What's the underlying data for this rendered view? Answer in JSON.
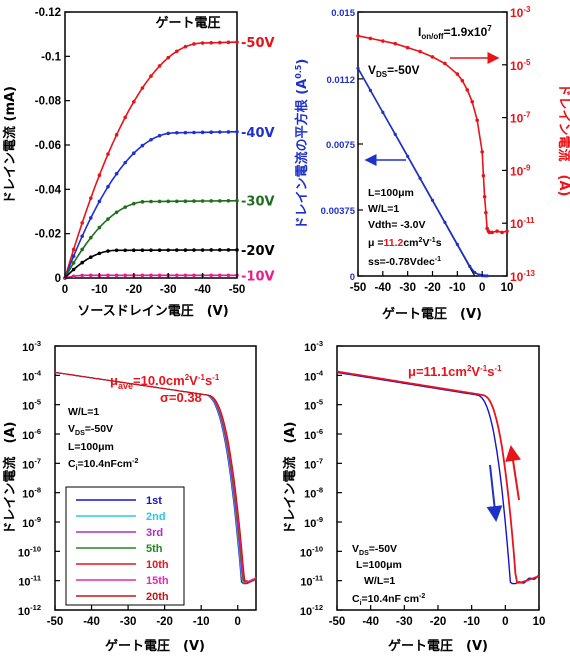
{
  "chart_data": [
    {
      "id": "output",
      "type": "line",
      "xlabel": "ソースドレイン電圧　(V)",
      "ylabel": "ドレイン電流 (mA)",
      "xlim": [
        0,
        -50
      ],
      "ylim": [
        0,
        -0.12
      ],
      "xticks": [
        0,
        -10,
        -20,
        -30,
        -40,
        -50
      ],
      "xticklabels": [
        "0",
        "-10",
        "-20",
        "-30",
        "-40",
        "-50"
      ],
      "yticks": [
        0,
        -0.02,
        -0.04,
        -0.06,
        -0.08,
        -0.1,
        -0.12
      ],
      "yticklabels": [
        "0",
        "-0.02",
        "-0.04",
        "-0.06",
        "-0.08",
        "-0.1",
        "-0.12"
      ],
      "legend_title": "ゲート電圧",
      "series": [
        {
          "name": "-50V",
          "color": "#e8141a",
          "sat": -0.106,
          "vsat": -40
        },
        {
          "name": "-40V",
          "color": "#2030d0",
          "sat": -0.0655,
          "vsat": -32
        },
        {
          "name": "-30V",
          "color": "#1e6e1e",
          "sat": -0.0345,
          "vsat": -24
        },
        {
          "name": "-20V",
          "color": "#000000",
          "sat": -0.0125,
          "vsat": -15
        },
        {
          "name": "-10V",
          "color": "#e61e8c",
          "sat": -0.0012,
          "vsat": -6
        }
      ]
    },
    {
      "id": "transfer",
      "type": "line",
      "xlabel": "ゲート電圧　(V)",
      "ylabel_left": "ドレイン電流の平方根 (A",
      "ylabel_left_sup": "0.5",
      "ylabel_left_end": ")",
      "ylabel_right": "ドレイン電流　(A)",
      "xlim": [
        -50,
        10
      ],
      "xticks": [
        -50,
        -40,
        -30,
        -20,
        -10,
        0,
        10
      ],
      "xticklabels": [
        "-50",
        "-40",
        "-30",
        "-20",
        "-10",
        "0",
        "10"
      ],
      "ylim_left": [
        0,
        0.015
      ],
      "yticks_left": [
        0,
        0.00375,
        0.0075,
        0.0112,
        0.015
      ],
      "yticklabels_left": [
        "0",
        "0.00375",
        "0.0075",
        "0.0112",
        "0.015"
      ],
      "yticks_right_exp": [
        -13,
        -11,
        -9,
        -7,
        -5,
        -3
      ],
      "ylim_right_log": [
        -13,
        -3
      ],
      "sqrt_series": {
        "color": "#1e32c8",
        "x": [
          -50,
          -45,
          -40,
          -35,
          -30,
          -25,
          -20,
          -15,
          -10,
          -5,
          -3,
          -1,
          0,
          1,
          2
        ],
        "y": [
          0.0118,
          0.01055,
          0.0093,
          0.00805,
          0.0068,
          0.00555,
          0.0043,
          0.00305,
          0.0018,
          0.00055,
          0.0002,
          5e-05,
          2e-05,
          1e-05,
          1e-05
        ]
      },
      "log_series": {
        "color": "#e8141a",
        "x": [
          -50,
          -45,
          -40,
          -35,
          -30,
          -25,
          -20,
          -15,
          -10,
          -8,
          -6,
          -4,
          -2,
          0,
          0.5,
          1,
          1.5,
          2,
          2.5,
          3,
          4,
          6,
          8,
          10
        ],
        "y": [
          -3.9,
          -4.0,
          -4.1,
          -4.2,
          -4.35,
          -4.5,
          -4.7,
          -4.95,
          -5.35,
          -5.6,
          -5.95,
          -6.4,
          -7.1,
          -8.3,
          -9.2,
          -10.0,
          -10.6,
          -11.2,
          -11.3,
          -11.35,
          -11.35,
          -11.3,
          -11.35,
          -11.3
        ]
      },
      "texts": {
        "ionoff": "I",
        "ionoff_sub": "on/off",
        "ionoff_val": "=1.9x10",
        "ionoff_exp": "7",
        "vds": "V",
        "vds_sub": "DS",
        "vds_val": "=-50V",
        "L": "L=100μm",
        "WL": "W/L=1",
        "vth": "Vdth= -3.0V",
        "mu_pre": "μ =",
        "mu_val": "11.2",
        "mu_unit": "cm",
        "mu_exp1": "2",
        "mu_unit2": "V",
        "mu_exp2": "-1",
        "mu_unit3": "s",
        "ss": "ss=-0.78Vdec",
        "ss_exp": "-1"
      }
    },
    {
      "id": "stability",
      "type": "line",
      "xlabel": "ゲート電圧　(V)",
      "ylabel": "ドレイン電流　(A)",
      "xlim": [
        -50,
        5
      ],
      "xticks": [
        -50,
        -40,
        -30,
        -20,
        -10,
        0
      ],
      "xticklabels": [
        "-50",
        "-40",
        "-30",
        "-20",
        "-10",
        "0"
      ],
      "ylim_log": [
        -12,
        -3
      ],
      "yticks_exp": [
        -12,
        -11,
        -10,
        -9,
        -8,
        -7,
        -6,
        -5,
        -4,
        -3
      ],
      "mu_text": {
        "pre": "μ",
        "sub": "ave",
        "val": "=10.0cm",
        "e1": "2",
        "v": "V",
        "e2": "-1",
        "s": "s",
        "e3": "-1"
      },
      "sigma": "σ=0.38",
      "info": {
        "wl": "W/L=1",
        "vds": "V",
        "vds_sub": "DS",
        "vds_val": "=-50V",
        "L": "L=100μm",
        "ci": "C",
        "ci_sub": "i",
        "ci_val": "=10.4nFcm",
        "ci_exp": "-2"
      },
      "legend": [
        {
          "name": "1st",
          "color": "#1414c8"
        },
        {
          "name": "2nd",
          "color": "#28c8e6"
        },
        {
          "name": "3rd",
          "color": "#b428c8"
        },
        {
          "name": "5th",
          "color": "#1e8c1e"
        },
        {
          "name": "10th",
          "color": "#e6141e"
        },
        {
          "name": "15th",
          "color": "#e628b4"
        },
        {
          "name": "20th",
          "color": "#c81414"
        }
      ]
    },
    {
      "id": "hysteresis",
      "type": "line",
      "xlabel": "ゲート電圧　(V)",
      "ylabel": "ドレイン電流　(A)",
      "xlim": [
        -50,
        10
      ],
      "xticks": [
        -50,
        -40,
        -30,
        -20,
        -10,
        0,
        10
      ],
      "xticklabels": [
        "-50",
        "-40",
        "-30",
        "-20",
        "-10",
        "0",
        "10"
      ],
      "ylim_log": [
        -12,
        -3
      ],
      "yticks_exp": [
        -12,
        -11,
        -10,
        -9,
        -8,
        -7,
        -6,
        -5,
        -4,
        -3
      ],
      "mu_text": {
        "pre": "μ",
        "val": "=11.1cm",
        "e1": "2",
        "v": "V",
        "e2": "-1",
        "s": "s",
        "e3": "-1"
      },
      "info": {
        "vds": "V",
        "vds_sub": "DS",
        "vds_val": "=-50V",
        "L": "L=100μm",
        "wl": "W/L=1",
        "ci": "C",
        "ci_sub": "i",
        "ci_val": "=10.4nF cm",
        "ci_exp": "-2"
      },
      "series": [
        {
          "name": "forward",
          "color": "#1414c8"
        },
        {
          "name": "reverse",
          "color": "#e6141e"
        }
      ]
    }
  ]
}
